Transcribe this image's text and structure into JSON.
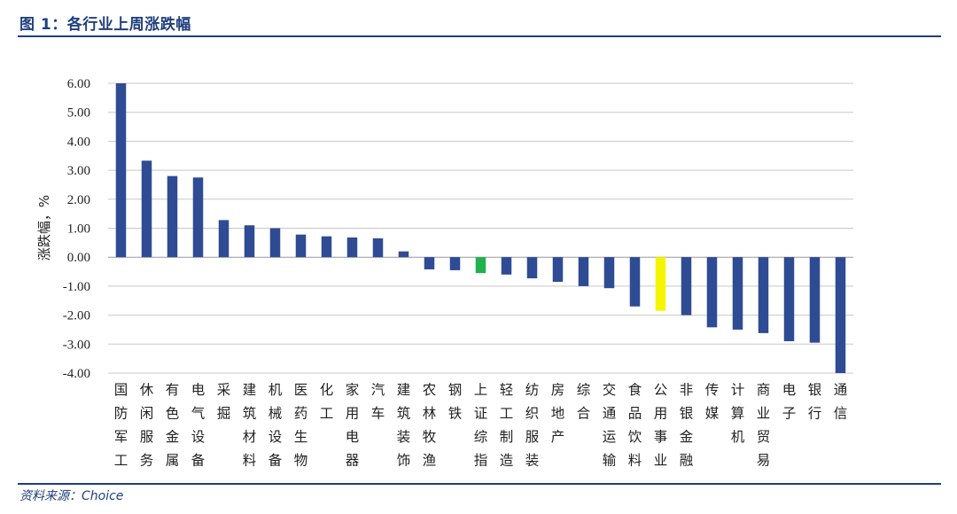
{
  "header": {
    "title": "图 1：各行业上周涨跌幅"
  },
  "footer": {
    "source": "资料来源：Choice"
  },
  "chart_data": {
    "type": "bar",
    "ylabel": "涨跌幅，%",
    "ylim": [
      -4.0,
      6.0
    ],
    "yticks": [
      "6.00",
      "5.00",
      "4.00",
      "3.00",
      "2.00",
      "1.00",
      "0.00",
      "-1.00",
      "-2.00",
      "-3.00",
      "-4.00"
    ],
    "grid": true,
    "categories": [
      "国防军工",
      "休闲服务",
      "有色金属",
      "电气设备",
      "采掘",
      "建筑材料",
      "机械设备",
      "医药生物",
      "化工",
      "家用电器",
      "汽车",
      "建筑装饰",
      "农林牧渔",
      "钢铁",
      "上证综指",
      "轻工制造",
      "纺织服装",
      "房地产",
      "综合",
      "交通运输",
      "食品饮料",
      "公用事业",
      "非银金融",
      "传媒",
      "计算机",
      "商业贸易",
      "电子",
      "银行",
      "通信"
    ],
    "values": [
      6.0,
      3.33,
      2.8,
      2.75,
      1.28,
      1.1,
      1.0,
      0.78,
      0.72,
      0.68,
      0.65,
      0.2,
      -0.42,
      -0.45,
      -0.55,
      -0.6,
      -0.73,
      -0.85,
      -1.0,
      -1.07,
      -1.7,
      -1.85,
      -2.0,
      -2.42,
      -2.5,
      -2.62,
      -2.9,
      -2.95,
      -4.0
    ],
    "colors": {
      "default": "#2e4b94",
      "上证综指": "#22b14c",
      "公用事业": "#f5f500",
      "grid": "#c8c8c8",
      "axis": "#999999"
    }
  }
}
